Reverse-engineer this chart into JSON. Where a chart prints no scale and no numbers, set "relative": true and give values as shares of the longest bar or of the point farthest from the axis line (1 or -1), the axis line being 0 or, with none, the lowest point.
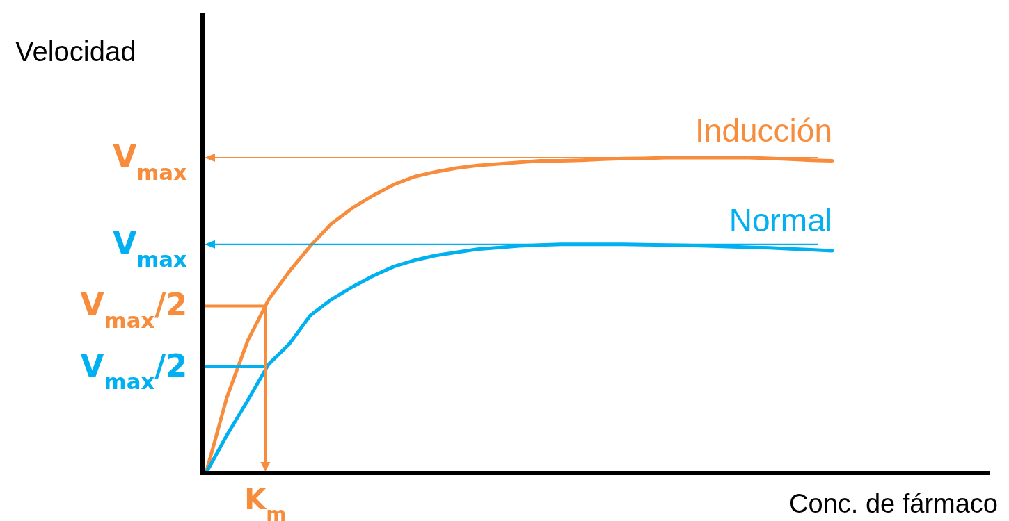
{
  "chart_data": {
    "type": "line",
    "relative": true,
    "xlabel": "Conc. de fármaco",
    "ylabel": "Velocidad",
    "categories": [
      null,
      null,
      null,
      null,
      null,
      null,
      null,
      null,
      null,
      null,
      null,
      null,
      null,
      null,
      null,
      null,
      null,
      null,
      null,
      null,
      null,
      null,
      null,
      null,
      null,
      null,
      null,
      null,
      null,
      null,
      null
    ],
    "series": [
      {
        "name": "Inducción",
        "color": "#f68c3c",
        "values": [
          0,
          0.24,
          0.42,
          0.55,
          0.64,
          0.72,
          0.79,
          0.84,
          0.88,
          0.915,
          0.94,
          0.955,
          0.967,
          0.975,
          0.98,
          0.985,
          0.99,
          0.99,
          0.992,
          0.995,
          0.997,
          0.998,
          1,
          1,
          1,
          1,
          1,
          0.998,
          0.995,
          0.992,
          0.99
        ]
      },
      {
        "name": "Normal",
        "color": "#00b0f0",
        "values": [
          0,
          0.12,
          0.23,
          0.345,
          0.41,
          0.5,
          0.55,
          0.59,
          0.625,
          0.655,
          0.675,
          0.69,
          0.7,
          0.71,
          0.715,
          0.72,
          0.723,
          0.725,
          0.725,
          0.725,
          0.725,
          0.724,
          0.723,
          0.722,
          0.72,
          0.718,
          0.716,
          0.714,
          0.711,
          0.708,
          0.705
        ]
      }
    ],
    "ref_lines": [
      {
        "axis": "y",
        "value": 1,
        "label": "V$_{max}$",
        "color": "#f68c3c"
      },
      {
        "axis": "y",
        "value": 0.725,
        "label": "V$_{max}$",
        "color": "#00b0f0"
      },
      {
        "axis": "y",
        "value": 0.53,
        "label": "V$_{max}$/2",
        "color": "#f68c3c"
      },
      {
        "axis": "y",
        "value": 0.337,
        "label": "V$_{max}$/2",
        "color": "#00b0f0"
      }
    ],
    "annotations": [
      "K$_{m}$"
    ],
    "marker": "none",
    "line_style": "solid"
  }
}
